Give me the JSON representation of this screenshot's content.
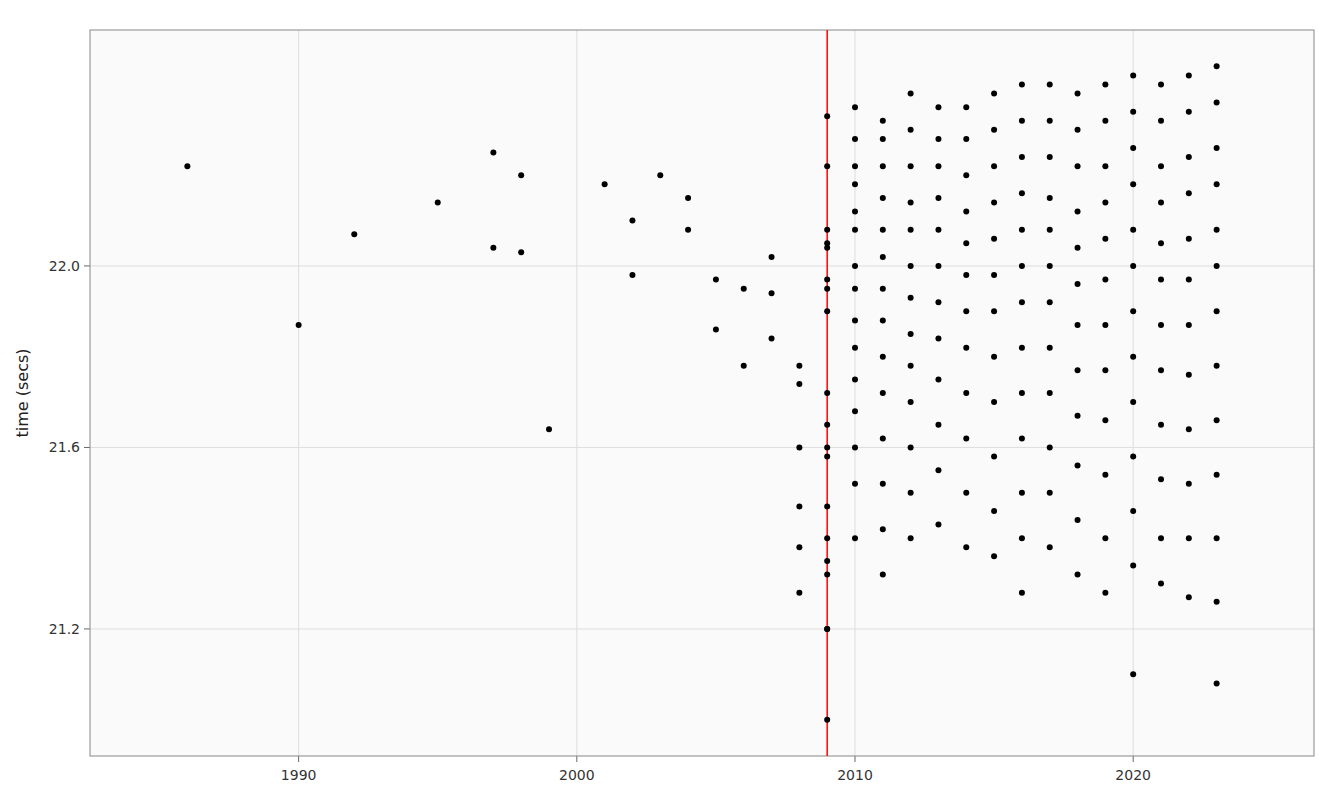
{
  "chart_data": {
    "type": "scatter",
    "ylabel": "time (secs)",
    "xlim": [
      1982.5,
      2026.5
    ],
    "ylim": [
      20.92,
      22.52
    ],
    "xticks": [
      1990,
      2000,
      2010,
      2020
    ],
    "yticks": [
      21.2,
      21.6,
      {
        "value": 22.0,
        "label": "22.0"
      }
    ],
    "grid": true,
    "color": "#000000",
    "marker": "circle",
    "reference_line": {
      "x": 2009,
      "color": "red"
    },
    "x": [
      1986,
      1990,
      1992,
      1995,
      1997,
      1997,
      1998,
      1998,
      1999,
      2001,
      2002,
      2002,
      2003,
      2004,
      2004,
      2005,
      2005,
      2006,
      2006,
      2007,
      2007,
      2007,
      2008,
      2008,
      2008,
      2008,
      2008,
      2008,
      2009,
      2009,
      2009,
      2009,
      2009,
      2009,
      2009,
      2009,
      2009,
      2009,
      2009,
      2009,
      2009,
      2009,
      2009,
      2009,
      2009,
      2009,
      2009,
      2010,
      2010,
      2010,
      2010,
      2010,
      2010,
      2010,
      2010,
      2010,
      2010,
      2010,
      2010,
      2010,
      2010,
      2010,
      2011,
      2011,
      2011,
      2011,
      2011,
      2011,
      2011,
      2011,
      2011,
      2011,
      2011,
      2011,
      2011,
      2011,
      2012,
      2012,
      2012,
      2012,
      2012,
      2012,
      2012,
      2012,
      2012,
      2012,
      2012,
      2012,
      2012,
      2013,
      2013,
      2013,
      2013,
      2013,
      2013,
      2013,
      2013,
      2013,
      2013,
      2013,
      2013,
      2014,
      2014,
      2014,
      2014,
      2014,
      2014,
      2014,
      2014,
      2014,
      2014,
      2014,
      2014,
      2015,
      2015,
      2015,
      2015,
      2015,
      2015,
      2015,
      2015,
      2015,
      2015,
      2015,
      2015,
      2016,
      2016,
      2016,
      2016,
      2016,
      2016,
      2016,
      2016,
      2016,
      2016,
      2016,
      2016,
      2016,
      2017,
      2017,
      2017,
      2017,
      2017,
      2017,
      2017,
      2017,
      2017,
      2017,
      2017,
      2017,
      2018,
      2018,
      2018,
      2018,
      2018,
      2018,
      2018,
      2018,
      2018,
      2018,
      2018,
      2018,
      2019,
      2019,
      2019,
      2019,
      2019,
      2019,
      2019,
      2019,
      2019,
      2019,
      2019,
      2019,
      2020,
      2020,
      2020,
      2020,
      2020,
      2020,
      2020,
      2020,
      2020,
      2020,
      2020,
      2020,
      2020,
      2021,
      2021,
      2021,
      2021,
      2021,
      2021,
      2021,
      2021,
      2021,
      2021,
      2021,
      2021,
      2022,
      2022,
      2022,
      2022,
      2022,
      2022,
      2022,
      2022,
      2022,
      2022,
      2022,
      2022,
      2023,
      2023,
      2023,
      2023,
      2023,
      2023,
      2023,
      2023,
      2023,
      2023,
      2023,
      2023,
      2023
    ],
    "values": [
      22.22,
      21.87,
      22.07,
      22.14,
      22.04,
      22.25,
      22.2,
      22.03,
      21.64,
      22.18,
      22.1,
      21.98,
      22.2,
      22.15,
      22.08,
      21.97,
      21.86,
      21.95,
      21.78,
      22.02,
      21.94,
      21.84,
      21.78,
      21.6,
      21.74,
      21.47,
      21.38,
      21.28,
      22.33,
      22.22,
      22.08,
      22.05,
      22.04,
      21.97,
      21.95,
      21.9,
      21.72,
      21.65,
      21.6,
      21.58,
      21.47,
      21.4,
      21.35,
      21.32,
      21.2,
      21.2,
      21.0,
      22.35,
      22.28,
      22.22,
      22.18,
      22.12,
      22.08,
      22.0,
      21.95,
      21.88,
      21.82,
      21.75,
      21.68,
      21.6,
      21.52,
      21.4,
      22.32,
      22.28,
      22.22,
      22.15,
      22.08,
      22.02,
      21.95,
      21.88,
      21.8,
      21.72,
      21.62,
      21.52,
      21.42,
      21.32,
      22.38,
      22.3,
      22.22,
      22.14,
      22.08,
      22.0,
      21.93,
      21.85,
      21.78,
      21.7,
      21.6,
      21.5,
      21.4,
      22.35,
      22.28,
      22.22,
      22.15,
      22.08,
      22.0,
      21.92,
      21.84,
      21.75,
      21.65,
      21.55,
      21.43,
      22.35,
      22.28,
      22.2,
      22.12,
      22.05,
      21.98,
      21.9,
      21.82,
      21.72,
      21.62,
      21.5,
      21.38,
      22.38,
      22.3,
      22.22,
      22.14,
      22.06,
      21.98,
      21.9,
      21.8,
      21.7,
      21.58,
      21.46,
      21.36,
      22.4,
      22.32,
      22.24,
      22.16,
      22.08,
      22.0,
      21.92,
      21.82,
      21.72,
      21.62,
      21.5,
      21.4,
      21.28,
      22.4,
      22.32,
      22.24,
      22.15,
      22.08,
      22.0,
      21.92,
      21.82,
      21.72,
      21.6,
      21.5,
      21.38,
      22.38,
      22.3,
      22.22,
      22.12,
      22.04,
      21.96,
      21.87,
      21.77,
      21.67,
      21.56,
      21.44,
      21.32,
      22.4,
      22.32,
      22.22,
      22.14,
      22.06,
      21.97,
      21.87,
      21.77,
      21.66,
      21.54,
      21.4,
      21.28,
      22.42,
      22.34,
      22.26,
      22.18,
      22.08,
      22.0,
      21.9,
      21.8,
      21.7,
      21.58,
      21.46,
      21.34,
      21.1,
      22.4,
      22.32,
      22.22,
      22.14,
      22.05,
      21.97,
      21.87,
      21.77,
      21.65,
      21.53,
      21.4,
      21.3,
      22.42,
      22.34,
      22.24,
      22.16,
      22.06,
      21.97,
      21.87,
      21.76,
      21.64,
      21.52,
      21.4,
      21.27,
      22.44,
      22.36,
      22.26,
      22.18,
      22.08,
      22.0,
      21.9,
      21.78,
      21.66,
      21.54,
      21.4,
      21.26,
      21.08
    ]
  }
}
